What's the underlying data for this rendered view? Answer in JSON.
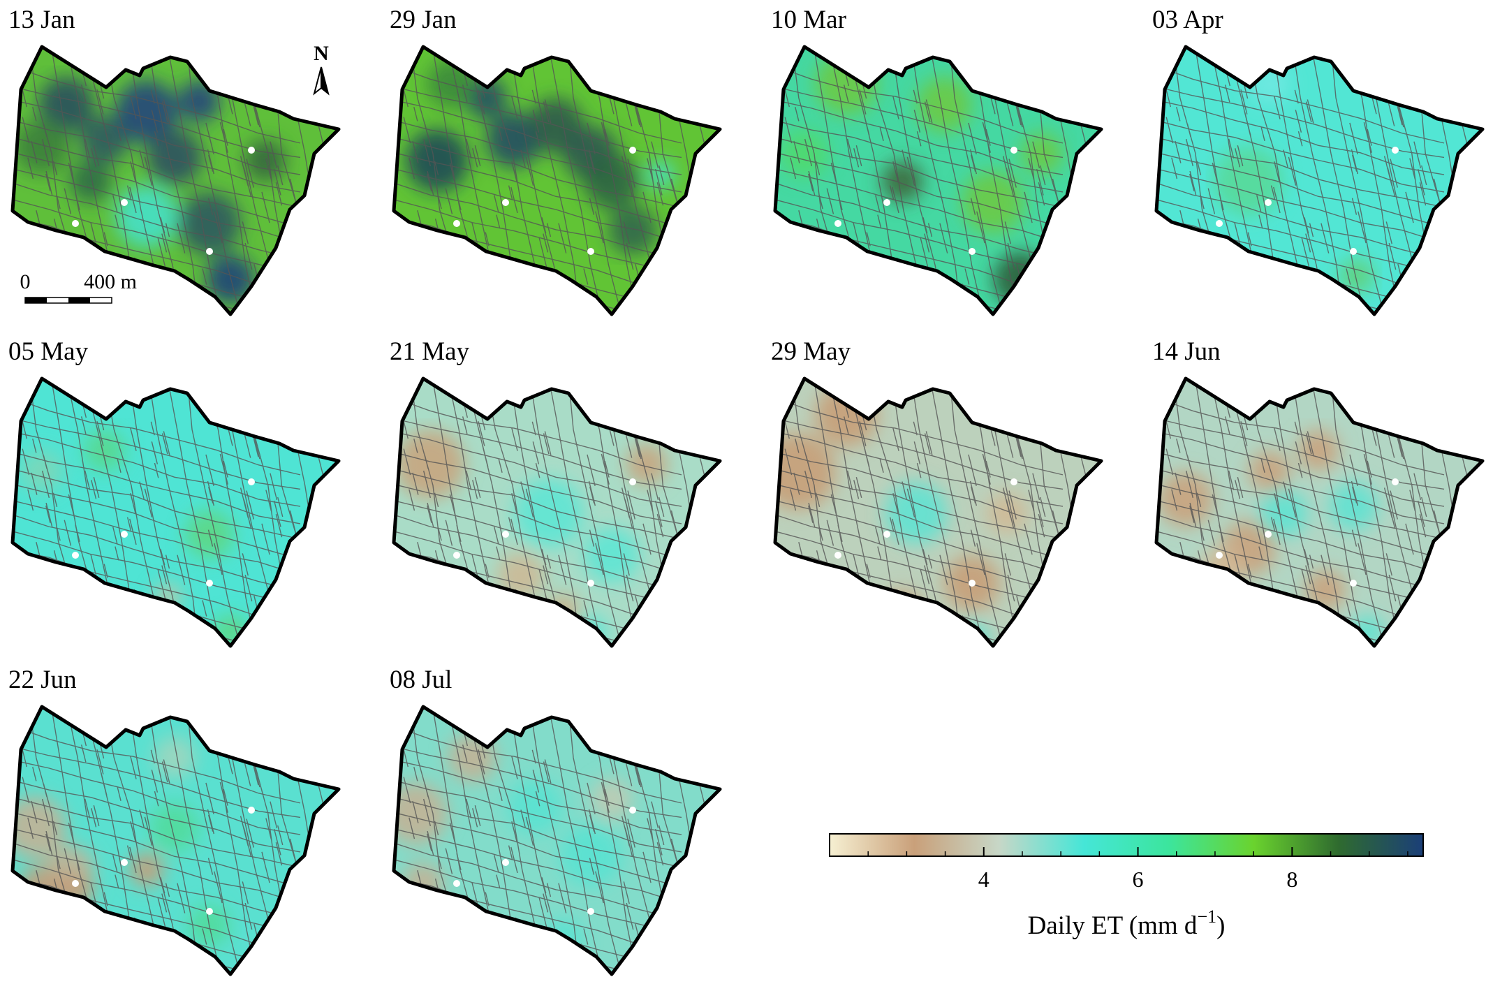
{
  "panels": [
    {
      "date": "13 Jan",
      "pattern": "jan13"
    },
    {
      "date": "29 Jan",
      "pattern": "jan29"
    },
    {
      "date": "10 Mar",
      "pattern": "mar10"
    },
    {
      "date": "03 Apr",
      "pattern": "apr03"
    },
    {
      "date": "05 May",
      "pattern": "may05"
    },
    {
      "date": "21 May",
      "pattern": "may21"
    },
    {
      "date": "29 May",
      "pattern": "may29"
    },
    {
      "date": "14 Jun",
      "pattern": "jun14"
    },
    {
      "date": "22 Jun",
      "pattern": "jun22"
    },
    {
      "date": "08 Jul",
      "pattern": "jul08"
    }
  ],
  "north_arrow": {
    "label": "N"
  },
  "scale_bar": {
    "start_label": "0",
    "end_label": "400 m"
  },
  "colorbar": {
    "title": "Daily ET (mm d",
    "title_superscript": "−1",
    "title_suffix": ")",
    "min": 2.0,
    "max": 9.7,
    "tick_labels": [
      "4",
      "6",
      "8"
    ],
    "tick_values": [
      4,
      6,
      8
    ],
    "colors": [
      "#f6f0d2",
      "#c9a07a",
      "#c7d7c7",
      "#45e6d7",
      "#3ce59d",
      "#6ad32e",
      "#2f6b2f",
      "#1b3f78"
    ]
  }
}
